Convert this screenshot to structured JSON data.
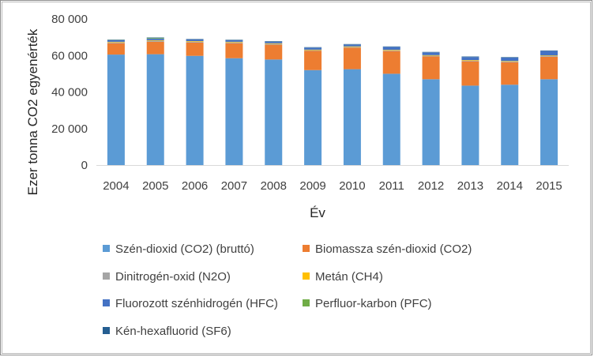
{
  "chart_data": {
    "type": "bar",
    "stacked": true,
    "categories": [
      "2004",
      "2005",
      "2006",
      "2007",
      "2008",
      "2009",
      "2010",
      "2011",
      "2012",
      "2013",
      "2014",
      "2015"
    ],
    "series": [
      {
        "name": "Szén-dioxid (CO2) (bruttó)",
        "color": "#5b9bd5",
        "values": [
          60500,
          60700,
          59800,
          58500,
          57800,
          52000,
          52500,
          50000,
          47000,
          43500,
          44000,
          47000
        ]
      },
      {
        "name": "Biomassza szén-dioxid (CO2)",
        "color": "#ed7d31",
        "values": [
          6200,
          6800,
          7300,
          8200,
          8100,
          10500,
          11800,
          12400,
          12500,
          13300,
          12300,
          12300
        ]
      },
      {
        "name": "Dinitrogén-oxid (N2O)",
        "color": "#a5a5a5",
        "values": [
          500,
          600,
          500,
          500,
          500,
          400,
          400,
          400,
          400,
          400,
          400,
          400
        ]
      },
      {
        "name": "Metán (CH4)",
        "color": "#ffc000",
        "values": [
          300,
          300,
          300,
          300,
          300,
          300,
          300,
          300,
          300,
          300,
          300,
          300
        ]
      },
      {
        "name": "Fluorozott szénhidrogén (HFC)",
        "color": "#4472c4",
        "values": [
          900,
          900,
          900,
          900,
          900,
          1100,
          1000,
          1600,
          1500,
          1700,
          1900,
          2500
        ]
      },
      {
        "name": "Perfluor-karbon (PFC)",
        "color": "#70ad47",
        "values": [
          100,
          400,
          50,
          50,
          50,
          50,
          50,
          50,
          50,
          50,
          50,
          50
        ]
      },
      {
        "name": "Kén-hexafluorid (SF6)",
        "color": "#255e91",
        "values": [
          200,
          200,
          200,
          200,
          200,
          200,
          200,
          200,
          200,
          200,
          200,
          200
        ]
      }
    ],
    "ylim": [
      0,
      80000
    ],
    "yticks": [
      0,
      20000,
      40000,
      60000,
      80000
    ],
    "ytick_labels": [
      "0",
      "20 000",
      "40 000",
      "60 000",
      "80 000"
    ],
    "xlabel": "Év",
    "ylabel": "Ezer tonna CO2 egyenérték",
    "legend_position": "bottom",
    "grid": false
  }
}
